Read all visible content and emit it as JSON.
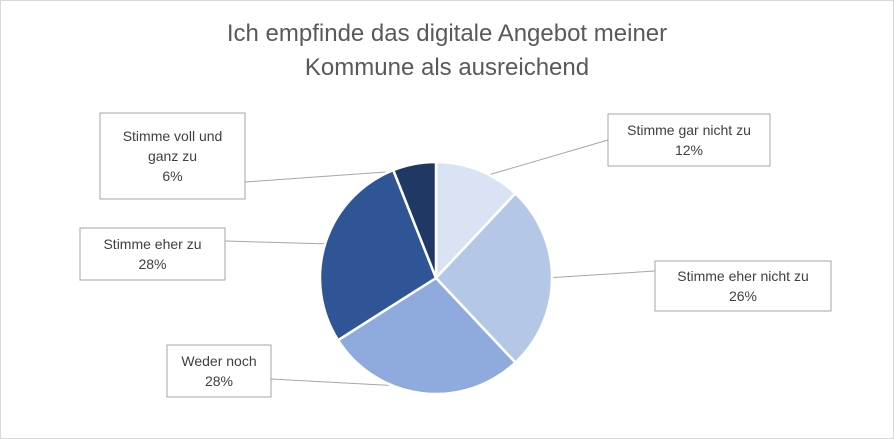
{
  "chart_data": {
    "type": "pie",
    "title": "Ich empfinde das digitale Angebot meiner Kommune als ausreichend",
    "slices": [
      {
        "label": "Stimme gar nicht zu",
        "value": 12,
        "value_label": "12%",
        "color": "#dae3f3"
      },
      {
        "label": "Stimme eher nicht zu",
        "value": 26,
        "value_label": "26%",
        "color": "#b4c7e7"
      },
      {
        "label": "Weder noch",
        "value": 28,
        "value_label": "28%",
        "color": "#8faadc"
      },
      {
        "label": "Stimme eher zu",
        "value": 28,
        "value_label": "28%",
        "color": "#2f5597"
      },
      {
        "label": "Stimme voll und ganz zu",
        "value": 6,
        "value_label": "6%",
        "color": "#203864"
      }
    ],
    "legend": "none",
    "data_labels": "callouts with leader lines"
  }
}
